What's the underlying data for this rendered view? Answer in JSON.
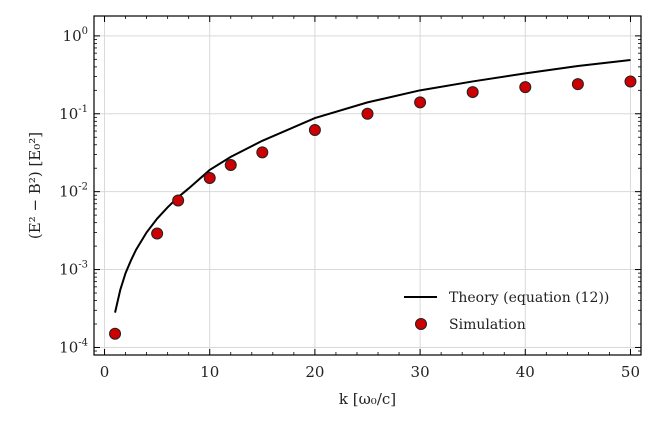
{
  "chart_data": {
    "type": "scatter",
    "xlabel": "k [ω₀/c]",
    "ylabel": "(E² − B²) [E₀²]",
    "x_scale": "linear",
    "y_scale": "log",
    "xlim": [
      -1,
      51
    ],
    "ylim": [
      8e-05,
      1.8
    ],
    "grid": true,
    "legend_position": "lower-right",
    "x_ticks": [
      0,
      10,
      20,
      30,
      40,
      50
    ],
    "x_tick_labels": [
      "0",
      "10",
      "20",
      "30",
      "40",
      "50"
    ],
    "y_ticks": [
      0.0001,
      0.001,
      0.01,
      0.1,
      1
    ],
    "y_tick_labels": [
      {
        "base": "10",
        "exp": "-4"
      },
      {
        "base": "10",
        "exp": "-3"
      },
      {
        "base": "10",
        "exp": "-2"
      },
      {
        "base": "10",
        "exp": "-1"
      },
      {
        "base": "10",
        "exp": "0"
      }
    ],
    "series": [
      {
        "name": "Theory (equation (12))",
        "kind": "line",
        "color": "#000000",
        "x": [
          1,
          1.5,
          2,
          2.5,
          3,
          4,
          5,
          6,
          7,
          8,
          10,
          12,
          15,
          20,
          25,
          30,
          35,
          40,
          45,
          50
        ],
        "y": [
          0.00028,
          0.00055,
          0.0009,
          0.0013,
          0.0018,
          0.003,
          0.0045,
          0.0063,
          0.0085,
          0.011,
          0.019,
          0.028,
          0.045,
          0.088,
          0.14,
          0.2,
          0.26,
          0.33,
          0.41,
          0.49
        ]
      },
      {
        "name": "Simulation",
        "kind": "scatter",
        "color": "#cc0000",
        "x": [
          1,
          5,
          7,
          10,
          12,
          15,
          20,
          25,
          30,
          35,
          40,
          45,
          50
        ],
        "y": [
          0.00015,
          0.0029,
          0.0077,
          0.015,
          0.022,
          0.032,
          0.062,
          0.1,
          0.14,
          0.19,
          0.22,
          0.24,
          0.26
        ]
      }
    ]
  }
}
